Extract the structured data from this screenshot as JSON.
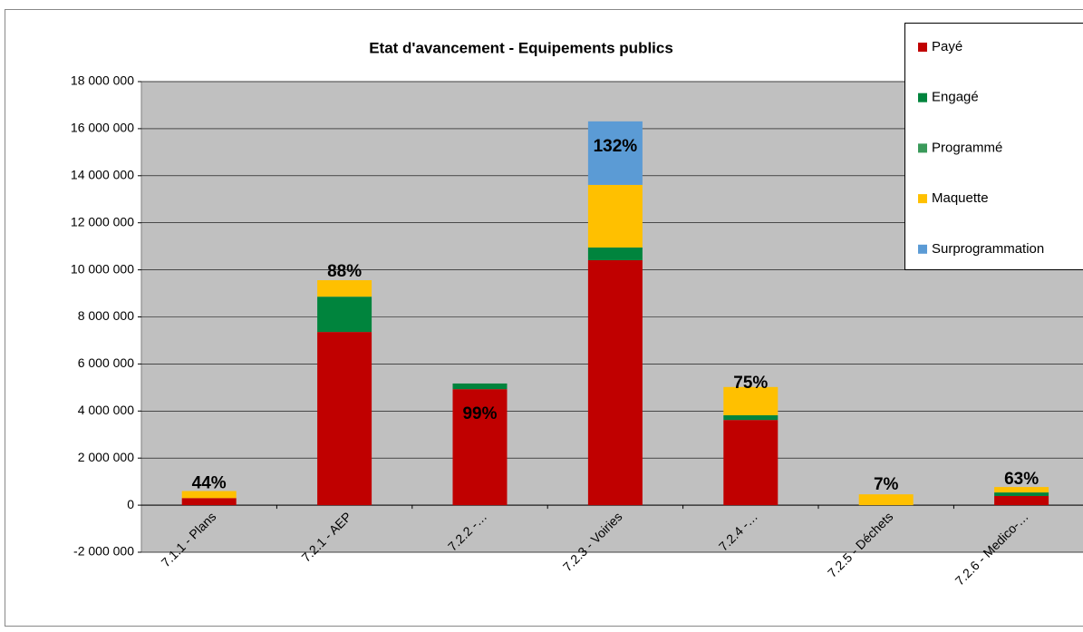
{
  "chart_data": {
    "type": "stacked_bar",
    "title": "Etat d'avancement - Equipements publics",
    "categories": [
      "7.1.1 - Plans",
      "7.2.1 - AEP",
      "7.2.2 -…",
      "7.2.3 - Voiries",
      "7.2.4 -…",
      "7.2.5 - Déchets",
      "7.2.6 - Medico-…"
    ],
    "series": [
      {
        "name": "Payé",
        "color": "#c00000",
        "values": [
          300000,
          7360000,
          4930000,
          10410000,
          3620000,
          0,
          390000
        ]
      },
      {
        "name": "Engagé",
        "color": "#00843d",
        "values": [
          0,
          1500000,
          240000,
          540000,
          200000,
          0,
          150000
        ]
      },
      {
        "name": "Programmé",
        "color": "#3a9a5a",
        "values": [
          0,
          0,
          0,
          0,
          0,
          0,
          0
        ]
      },
      {
        "name": "Maquette",
        "color": "#ffc000",
        "values": [
          300000,
          700000,
          0,
          2660000,
          1200000,
          460000,
          230000
        ]
      },
      {
        "name": "Surprogrammation",
        "color": "#5b9bd5",
        "values": [
          0,
          0,
          0,
          2700000,
          0,
          0,
          0
        ]
      }
    ],
    "percent_labels": [
      "44%",
      "88%",
      "99%",
      "132%",
      "75%",
      "7%",
      "63%"
    ],
    "ylim": [
      -2000000,
      18000000
    ],
    "yticks": [
      {
        "value": -2000000,
        "label": "-2 000 000"
      },
      0,
      {
        "value": 2000000,
        "label": "2 000 000"
      },
      {
        "value": 4000000,
        "label": "4 000 000"
      },
      {
        "value": 6000000,
        "label": "6 000 000"
      },
      {
        "value": 8000000,
        "label": "8 000 000"
      },
      {
        "value": 10000000,
        "label": "10 000 000"
      },
      {
        "value": 12000000,
        "label": "12 000 000"
      },
      {
        "value": 14000000,
        "label": "14 000 000"
      },
      {
        "value": 16000000,
        "label": "16 000 000"
      },
      {
        "value": 18000000,
        "label": "18 000 000"
      }
    ],
    "grid": true
  }
}
